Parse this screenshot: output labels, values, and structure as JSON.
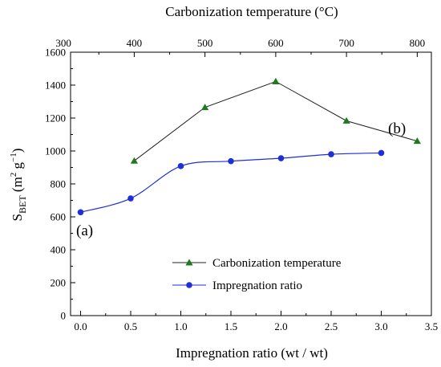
{
  "chart_data": {
    "type": "line",
    "xlabel": "Impregnation ratio (wt / wt)",
    "x2label": "Carbonization temperature (°C)",
    "ylabel": {
      "main": "S",
      "sub": "BET",
      "units_prefix": " (m",
      "units_sup1": "2",
      "units_mid": " g",
      "units_sup2": "−1",
      "units_suffix": ")"
    },
    "xlim": [
      -0.1,
      3.5
    ],
    "x2lim": [
      310,
      820
    ],
    "ylim": [
      0,
      1600
    ],
    "x_ticks": [
      "0.0",
      "0.5",
      "1.0",
      "1.5",
      "2.0",
      "2.5",
      "3.0",
      "3.5"
    ],
    "x_tick_values": [
      0,
      0.5,
      1.0,
      1.5,
      2.0,
      2.5,
      3.0,
      3.5
    ],
    "x2_ticks": [
      "300",
      "400",
      "500",
      "600",
      "700",
      "800"
    ],
    "x2_tick_values": [
      300,
      400,
      500,
      600,
      700,
      800
    ],
    "y_ticks": [
      "0",
      "200",
      "400",
      "600",
      "800",
      "1000",
      "1200",
      "1400",
      "1600"
    ],
    "y_tick_values": [
      0,
      200,
      400,
      600,
      800,
      1000,
      1200,
      1400,
      1600
    ],
    "grid": false,
    "legend_position": "bottom-right",
    "series": [
      {
        "name": "Carbonization temperature",
        "axis": "top",
        "color": "#1e7a1e",
        "marker": "triangle",
        "x": [
          400,
          500,
          600,
          700,
          800
        ],
        "values": [
          940,
          1265,
          1422,
          1183,
          1060
        ]
      },
      {
        "name": "Impregnation ratio",
        "axis": "bottom",
        "color": "#1f2fd8",
        "marker": "circle",
        "x": [
          0.0,
          0.5,
          1.0,
          1.5,
          2.0,
          2.5,
          3.0
        ],
        "values": [
          628,
          712,
          908,
          938,
          956,
          980,
          988
        ]
      }
    ],
    "annotations": [
      {
        "text": "(a)",
        "color": "#1f2fd8"
      },
      {
        "text": "(b)",
        "color": "#1e6b1e"
      }
    ]
  }
}
